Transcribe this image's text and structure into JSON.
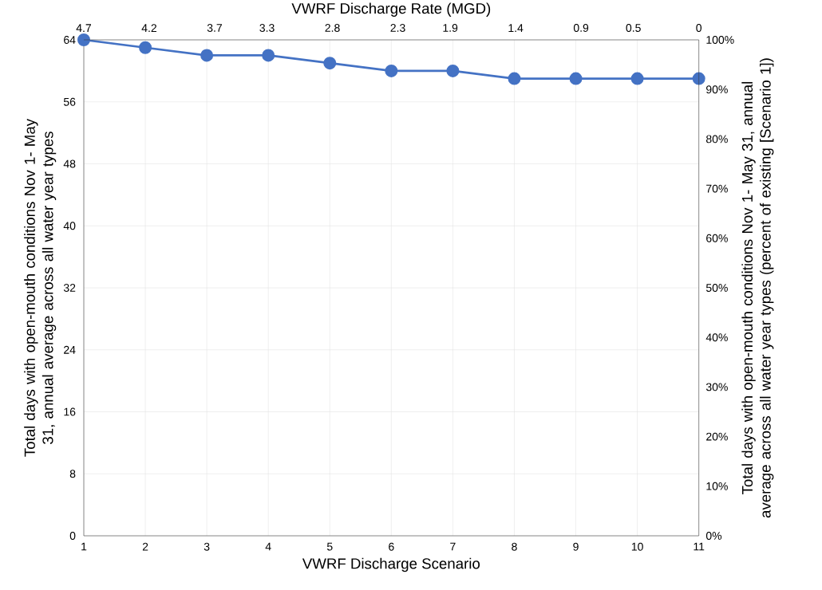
{
  "chart_data": {
    "type": "line",
    "xlabel": "VWRF Discharge Scenario",
    "x2label": "VWRF Discharge Rate (MGD)",
    "ylabel": "Total days with open-mouth conditions Nov 1- May 31, annual average across all water year types",
    "y2label": "Total days with open-mouth conditions Nov 1- May 31, annual average across all water year types (percent of existing [Scenario 1])",
    "x": [
      1,
      2,
      3,
      4,
      5,
      6,
      7,
      8,
      9,
      10,
      11
    ],
    "series": [
      {
        "color": "#4472c4",
        "values": [
          64,
          63,
          62,
          62,
          61,
          60,
          60,
          59,
          59,
          59,
          59
        ]
      }
    ],
    "xlim": [
      1,
      11
    ],
    "xticks": [
      1,
      2,
      3,
      4,
      5,
      6,
      7,
      8,
      9,
      10,
      11
    ],
    "x2lim": [
      4.7,
      0
    ],
    "x2ticks": [
      4.7,
      4.2,
      3.7,
      3.3,
      2.8,
      2.3,
      1.9,
      1.4,
      0.9,
      0.5,
      0
    ],
    "ylim": [
      0,
      64
    ],
    "yticks": [
      0,
      8,
      16,
      24,
      32,
      40,
      48,
      56,
      64
    ],
    "y2lim": [
      0,
      100
    ],
    "y2ticks": [
      {
        "value": 0,
        "label": "0%"
      },
      {
        "value": 10,
        "label": "10%"
      },
      {
        "value": 20,
        "label": "20%"
      },
      {
        "value": 30,
        "label": "30%"
      },
      {
        "value": 40,
        "label": "40%"
      },
      {
        "value": 50,
        "label": "50%"
      },
      {
        "value": 60,
        "label": "60%"
      },
      {
        "value": 70,
        "label": "70%"
      },
      {
        "value": 80,
        "label": "80%"
      },
      {
        "value": 90,
        "label": "90%"
      },
      {
        "value": 100,
        "label": "100%"
      }
    ],
    "grid": true,
    "marker": "circle",
    "line_style": "solid"
  }
}
